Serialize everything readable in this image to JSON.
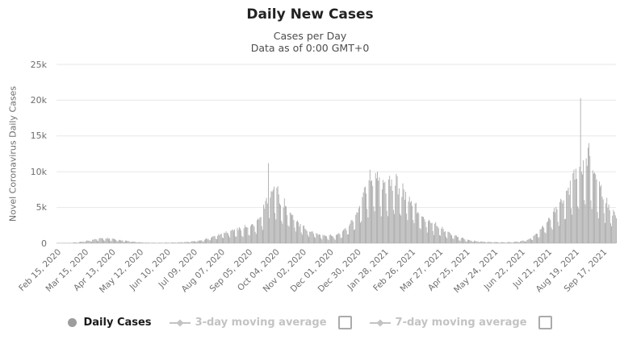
{
  "header": {
    "title": "Daily New Cases",
    "subtitle_line1": "Cases per Day",
    "subtitle_line2": "Data as of 0:00 GMT+0"
  },
  "y_axis": {
    "title": "Novel Coronavirus Daily Cases",
    "tick_labels": [
      "0",
      "5k",
      "10k",
      "15k",
      "20k",
      "25k"
    ]
  },
  "x_axis": {
    "tick_labels": [
      "Feb 15, 2020",
      "Mar 15, 2020",
      "Apr 13, 2020",
      "May 12, 2020",
      "Jun 10, 2020",
      "Jul 09, 2020",
      "Aug 07, 2020",
      "Sep 05, 2020",
      "Oct 04, 2020",
      "Nov 02, 2020",
      "Dec 01, 2020",
      "Dec 30, 2020",
      "Jan 28, 2021",
      "Feb 26, 2021",
      "Mar 27, 2021",
      "Apr 25, 2021",
      "May 24, 2021",
      "Jun 22, 2021",
      "Jul 21, 2021",
      "Aug 19, 2021",
      "Sep 17, 2021"
    ]
  },
  "legend": {
    "daily_cases_label": "Daily Cases",
    "ma3_label": "3-day moving average",
    "ma7_label": "7-day moving average"
  },
  "colors": {
    "bar": "#a2a2a2",
    "grid": "#e7e7e7",
    "baseline": "#d8d8d8",
    "axis_text": "#6e6e6e",
    "legend_inactive": "#c3c3c3",
    "daily_marker": "#9d9d9d",
    "checkbox_border": "#ababab"
  },
  "chart_data": {
    "type": "bar",
    "title": "Daily New Cases",
    "subtitle": "Cases per Day — Data as of 0:00 GMT+0",
    "series_name": "Daily Cases",
    "xlabel": "",
    "ylabel": "Novel Coronavirus Daily Cases",
    "ylim": [
      0,
      25000
    ],
    "grid": true,
    "legend_position": "bottom",
    "x_tick_labels": [
      "Feb 15, 2020",
      "Mar 15, 2020",
      "Apr 13, 2020",
      "May 12, 2020",
      "Jun 10, 2020",
      "Jul 09, 2020",
      "Aug 07, 2020",
      "Sep 05, 2020",
      "Oct 04, 2020",
      "Nov 02, 2020",
      "Dec 01, 2020",
      "Dec 30, 2020",
      "Jan 28, 2021",
      "Feb 26, 2021",
      "Mar 27, 2021",
      "Apr 25, 2021",
      "May 24, 2021",
      "Jun 22, 2021",
      "Jul 21, 2021",
      "Aug 19, 2021",
      "Sep 17, 2021"
    ],
    "start_date": "2020-02-15",
    "end_date": "2021-10-02",
    "tick_interval_days": 29,
    "weekly_envelope": [
      {
        "date": "2020-02-15",
        "value": 15
      },
      {
        "date": "2020-02-22",
        "value": 30
      },
      {
        "date": "2020-02-29",
        "value": 60
      },
      {
        "date": "2020-03-07",
        "value": 130
      },
      {
        "date": "2020-03-14",
        "value": 260
      },
      {
        "date": "2020-03-21",
        "value": 450
      },
      {
        "date": "2020-03-28",
        "value": 620
      },
      {
        "date": "2020-04-04",
        "value": 780
      },
      {
        "date": "2020-04-11",
        "value": 700
      },
      {
        "date": "2020-04-18",
        "value": 560
      },
      {
        "date": "2020-04-25",
        "value": 430
      },
      {
        "date": "2020-05-02",
        "value": 300
      },
      {
        "date": "2020-05-09",
        "value": 200
      },
      {
        "date": "2020-05-16",
        "value": 130
      },
      {
        "date": "2020-05-23",
        "value": 90
      },
      {
        "date": "2020-05-30",
        "value": 70
      },
      {
        "date": "2020-06-06",
        "value": 80
      },
      {
        "date": "2020-06-13",
        "value": 100
      },
      {
        "date": "2020-06-20",
        "value": 120
      },
      {
        "date": "2020-06-27",
        "value": 150
      },
      {
        "date": "2020-07-04",
        "value": 220
      },
      {
        "date": "2020-07-11",
        "value": 320
      },
      {
        "date": "2020-07-18",
        "value": 480
      },
      {
        "date": "2020-07-25",
        "value": 750
      },
      {
        "date": "2020-08-01",
        "value": 1050
      },
      {
        "date": "2020-08-08",
        "value": 1400
      },
      {
        "date": "2020-08-15",
        "value": 1700
      },
      {
        "date": "2020-08-22",
        "value": 1950
      },
      {
        "date": "2020-08-29",
        "value": 2150
      },
      {
        "date": "2020-09-05",
        "value": 2400
      },
      {
        "date": "2020-09-12",
        "value": 2700
      },
      {
        "date": "2020-09-19",
        "value": 3800
      },
      {
        "date": "2020-09-26",
        "value": 7000
      },
      {
        "date": "2020-10-03",
        "value": 8200
      },
      {
        "date": "2020-10-10",
        "value": 6800
      },
      {
        "date": "2020-10-17",
        "value": 5000
      },
      {
        "date": "2020-10-24",
        "value": 3800
      },
      {
        "date": "2020-10-31",
        "value": 2800
      },
      {
        "date": "2020-11-07",
        "value": 2100
      },
      {
        "date": "2020-11-14",
        "value": 1600
      },
      {
        "date": "2020-11-21",
        "value": 1250
      },
      {
        "date": "2020-11-28",
        "value": 1050
      },
      {
        "date": "2020-12-05",
        "value": 1150
      },
      {
        "date": "2020-12-12",
        "value": 1450
      },
      {
        "date": "2020-12-19",
        "value": 2200
      },
      {
        "date": "2020-12-26",
        "value": 3500
      },
      {
        "date": "2021-01-02",
        "value": 5200
      },
      {
        "date": "2021-01-09",
        "value": 8800
      },
      {
        "date": "2021-01-16",
        "value": 9600
      },
      {
        "date": "2021-01-23",
        "value": 9300
      },
      {
        "date": "2021-01-30",
        "value": 8900
      },
      {
        "date": "2021-02-06",
        "value": 9200
      },
      {
        "date": "2021-02-13",
        "value": 8400
      },
      {
        "date": "2021-02-20",
        "value": 7200
      },
      {
        "date": "2021-02-27",
        "value": 6000
      },
      {
        "date": "2021-03-06",
        "value": 4500
      },
      {
        "date": "2021-03-13",
        "value": 3800
      },
      {
        "date": "2021-03-20",
        "value": 3000
      },
      {
        "date": "2021-03-27",
        "value": 2400
      },
      {
        "date": "2021-04-03",
        "value": 1800
      },
      {
        "date": "2021-04-10",
        "value": 1300
      },
      {
        "date": "2021-04-17",
        "value": 900
      },
      {
        "date": "2021-04-24",
        "value": 600
      },
      {
        "date": "2021-05-01",
        "value": 400
      },
      {
        "date": "2021-05-08",
        "value": 280
      },
      {
        "date": "2021-05-15",
        "value": 220
      },
      {
        "date": "2021-05-22",
        "value": 180
      },
      {
        "date": "2021-05-29",
        "value": 160
      },
      {
        "date": "2021-06-05",
        "value": 150
      },
      {
        "date": "2021-06-12",
        "value": 170
      },
      {
        "date": "2021-06-19",
        "value": 240
      },
      {
        "date": "2021-06-26",
        "value": 400
      },
      {
        "date": "2021-07-03",
        "value": 700
      },
      {
        "date": "2021-07-10",
        "value": 1500
      },
      {
        "date": "2021-07-17",
        "value": 2800
      },
      {
        "date": "2021-07-24",
        "value": 4000
      },
      {
        "date": "2021-07-31",
        "value": 5200
      },
      {
        "date": "2021-08-07",
        "value": 6800
      },
      {
        "date": "2021-08-14",
        "value": 8800
      },
      {
        "date": "2021-08-21",
        "value": 10500
      },
      {
        "date": "2021-08-28",
        "value": 12000
      },
      {
        "date": "2021-09-04",
        "value": 12500
      },
      {
        "date": "2021-09-11",
        "value": 9500
      },
      {
        "date": "2021-09-18",
        "value": 7500
      },
      {
        "date": "2021-09-25",
        "value": 5200
      },
      {
        "date": "2021-10-02",
        "value": 4000
      }
    ],
    "outlier_spikes": [
      {
        "date": "2020-09-27",
        "value": 11200
      },
      {
        "date": "2021-08-25",
        "value": 20300
      },
      {
        "date": "2021-09-03",
        "value": 14000
      }
    ],
    "weekday_pattern": [
      0.9,
      0.55,
      0.45,
      0.95,
      1.0,
      0.98,
      0.92
    ]
  }
}
